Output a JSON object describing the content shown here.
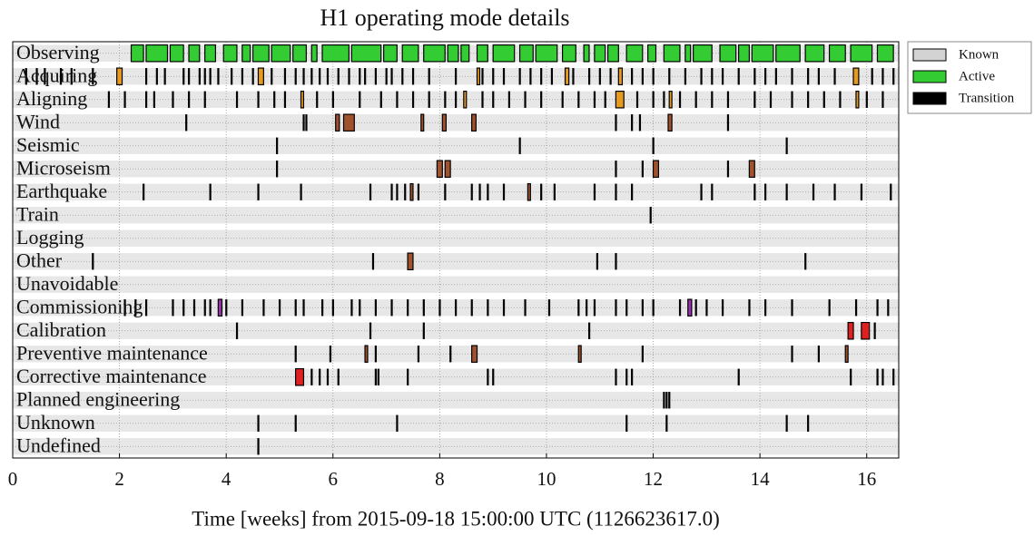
{
  "chart_data": {
    "type": "timeline",
    "title": "H1 operating mode details",
    "x_label": "Time [weeks] from 2015-09-18 15:00:00 UTC (1126623617.0)",
    "xlim": [
      0,
      16.6
    ],
    "xticks": [
      0,
      2,
      4,
      6,
      8,
      10,
      12,
      14,
      16
    ],
    "grid": true,
    "legend_position": "outside right",
    "legend": [
      {
        "name": "Known",
        "color": "#d3d3d3"
      },
      {
        "name": "Active",
        "color": "#33cc33"
      },
      {
        "name": "Transition",
        "color": "#000000"
      }
    ],
    "rows": [
      {
        "name": "Observing",
        "color": "#33cc33",
        "known": [
          [
            0,
            16.6
          ]
        ],
        "active": [
          [
            2.22,
            2.45
          ],
          [
            2.5,
            2.9
          ],
          [
            2.95,
            3.2
          ],
          [
            3.3,
            3.5
          ],
          [
            3.6,
            3.8
          ],
          [
            3.95,
            4.2
          ],
          [
            4.3,
            4.45
          ],
          [
            4.5,
            4.8
          ],
          [
            4.85,
            5.2
          ],
          [
            5.25,
            5.5
          ],
          [
            5.6,
            5.7
          ],
          [
            5.8,
            6.3
          ],
          [
            6.35,
            6.9
          ],
          [
            6.95,
            7.2
          ],
          [
            7.3,
            7.6
          ],
          [
            7.7,
            8.1
          ],
          [
            8.15,
            8.35
          ],
          [
            8.4,
            8.55
          ],
          [
            8.7,
            8.9
          ],
          [
            9.0,
            9.4
          ],
          [
            9.5,
            9.75
          ],
          [
            9.8,
            10.2
          ],
          [
            10.3,
            10.55
          ],
          [
            10.7,
            10.8
          ],
          [
            10.9,
            11.1
          ],
          [
            11.15,
            11.35
          ],
          [
            11.5,
            11.8
          ],
          [
            11.9,
            12.05
          ],
          [
            12.2,
            12.5
          ],
          [
            12.6,
            12.7
          ],
          [
            12.75,
            13.1
          ],
          [
            13.25,
            13.55
          ],
          [
            13.6,
            13.8
          ],
          [
            13.85,
            14.25
          ],
          [
            14.3,
            14.75
          ],
          [
            14.85,
            15.2
          ],
          [
            15.3,
            15.6
          ],
          [
            15.7,
            16.1
          ],
          [
            16.2,
            16.5
          ]
        ],
        "transition": []
      },
      {
        "name": "Acquiring",
        "color": "#e69a1e",
        "known": [
          [
            0,
            16.6
          ]
        ],
        "active": [
          [
            1.95,
            2.05
          ],
          [
            4.6,
            4.7
          ],
          [
            8.7,
            8.75
          ],
          [
            10.35,
            10.42
          ],
          [
            11.35,
            11.42
          ],
          [
            15.75,
            15.85
          ]
        ],
        "transition": [
          0.25,
          0.45,
          0.6,
          0.9,
          1.1,
          1.5,
          2.5,
          2.7,
          2.85,
          3.2,
          3.3,
          3.5,
          3.6,
          3.7,
          3.85,
          4.1,
          4.3,
          4.5,
          4.85,
          5.1,
          5.3,
          5.45,
          5.6,
          5.75,
          5.9,
          6.1,
          6.3,
          6.5,
          6.6,
          6.8,
          7.0,
          7.1,
          7.3,
          7.5,
          7.8,
          8.3,
          8.8,
          9.0,
          9.2,
          9.5,
          9.7,
          9.9,
          10.1,
          10.5,
          10.8,
          11.0,
          11.2,
          11.6,
          11.8,
          12.0,
          12.3,
          12.6,
          12.9,
          13.1,
          13.3,
          13.6,
          13.9,
          14.1,
          14.3,
          14.6,
          14.9,
          15.1,
          15.4,
          16.1,
          16.3,
          16.5
        ]
      },
      {
        "name": "Aligning",
        "color": "#e69a1e",
        "known": [
          [
            0,
            16.6
          ]
        ],
        "active": [
          [
            5.4,
            5.45
          ],
          [
            8.45,
            8.5
          ],
          [
            11.3,
            11.45
          ],
          [
            12.3,
            12.35
          ],
          [
            15.8,
            15.85
          ]
        ],
        "transition": [
          1.8,
          2.1,
          2.5,
          2.65,
          3.0,
          3.3,
          3.6,
          4.2,
          4.6,
          4.9,
          5.1,
          5.7,
          6.0,
          6.5,
          6.9,
          7.2,
          7.5,
          7.8,
          8.1,
          8.3,
          8.8,
          9.0,
          9.3,
          9.6,
          9.9,
          10.3,
          10.6,
          10.9,
          11.1,
          11.7,
          12.0,
          12.2,
          12.5,
          12.8,
          13.1,
          13.4,
          13.9,
          14.2,
          14.6,
          14.9,
          15.2,
          15.5,
          16.0,
          16.3
        ]
      },
      {
        "name": "Wind",
        "color": "#a0522d",
        "known": [
          [
            0,
            16.6
          ]
        ],
        "active": [
          [
            6.05,
            6.12
          ],
          [
            6.2,
            6.4
          ],
          [
            7.65,
            7.7
          ],
          [
            8.05,
            8.12
          ],
          [
            8.6,
            8.68
          ],
          [
            12.28,
            12.35
          ]
        ],
        "transition": [
          3.25,
          5.45,
          5.5,
          11.3,
          11.6,
          11.75,
          13.4
        ]
      },
      {
        "name": "Seismic",
        "color": "#a0522d",
        "known": [
          [
            0,
            16.6
          ]
        ],
        "active": [],
        "transition": [
          4.95,
          9.5,
          12.0,
          14.5
        ]
      },
      {
        "name": "Microseism",
        "color": "#a0522d",
        "known": [
          [
            0,
            16.6
          ]
        ],
        "active": [
          [
            7.95,
            8.05
          ],
          [
            8.1,
            8.2
          ],
          [
            12.0,
            12.1
          ],
          [
            13.8,
            13.9
          ]
        ],
        "transition": [
          4.95,
          11.3,
          11.8,
          13.4
        ]
      },
      {
        "name": "Earthquake",
        "color": "#a0522d",
        "known": [
          [
            0,
            16.6
          ]
        ],
        "active": [
          [
            7.45,
            7.5
          ],
          [
            9.65,
            9.7
          ]
        ],
        "transition": [
          2.45,
          3.7,
          4.6,
          5.4,
          6.7,
          7.1,
          7.2,
          7.35,
          7.6,
          8.1,
          8.6,
          8.75,
          8.9,
          9.2,
          9.9,
          10.15,
          10.9,
          11.3,
          11.6,
          12.9,
          13.1,
          13.9,
          14.1,
          14.5,
          15.0,
          15.4,
          15.9,
          16.45
        ]
      },
      {
        "name": "Train",
        "color": "#a0522d",
        "known": [
          [
            0,
            16.6
          ]
        ],
        "active": [],
        "transition": [
          11.95
        ]
      },
      {
        "name": "Logging",
        "color": "#a0522d",
        "known": [
          [
            0,
            16.6
          ]
        ],
        "active": [],
        "transition": []
      },
      {
        "name": "Other",
        "color": "#a0522d",
        "known": [
          [
            0,
            16.6
          ]
        ],
        "active": [
          [
            7.4,
            7.5
          ]
        ],
        "transition": [
          1.5,
          6.75,
          10.95,
          11.3,
          14.85
        ]
      },
      {
        "name": "Unavoidable",
        "color": "#a0522d",
        "known": [
          [
            0,
            16.6
          ]
        ],
        "active": [],
        "transition": []
      },
      {
        "name": "Commissioning",
        "color": "#9b30b0",
        "known": [
          [
            0,
            16.6
          ]
        ],
        "active": [
          [
            3.85,
            3.92
          ],
          [
            12.65,
            12.72
          ]
        ],
        "transition": [
          2.1,
          2.3,
          2.5,
          3.0,
          3.2,
          3.4,
          3.6,
          3.7,
          4.0,
          4.3,
          4.7,
          5.0,
          5.3,
          5.45,
          5.8,
          6.0,
          6.35,
          6.5,
          6.8,
          7.1,
          7.4,
          7.7,
          8.0,
          8.3,
          8.6,
          8.9,
          9.2,
          9.6,
          10.05,
          10.6,
          10.75,
          10.9,
          11.3,
          11.5,
          11.8,
          12.0,
          12.5,
          12.8,
          13.0,
          13.3,
          13.8,
          14.1,
          14.6,
          15.3,
          15.8,
          16.2,
          16.4
        ]
      },
      {
        "name": "Calibration",
        "color": "#e02020",
        "known": [
          [
            0,
            16.6
          ]
        ],
        "active": [
          [
            15.65,
            15.75
          ],
          [
            15.9,
            16.05
          ]
        ],
        "transition": [
          4.2,
          6.7,
          7.7,
          10.8,
          16.15
        ]
      },
      {
        "name": "Preventive maintenance",
        "color": "#a0522d",
        "known": [
          [
            0,
            16.6
          ]
        ],
        "active": [
          [
            6.6,
            6.65
          ],
          [
            8.6,
            8.7
          ],
          [
            10.6,
            10.65
          ],
          [
            15.6,
            15.65
          ]
        ],
        "transition": [
          5.3,
          5.95,
          6.8,
          7.6,
          8.2,
          11.8,
          14.6,
          15.1
        ]
      },
      {
        "name": "Corrective maintenance",
        "color": "#e02020",
        "known": [
          [
            0,
            16.6
          ]
        ],
        "active": [
          [
            5.3,
            5.45
          ]
        ],
        "transition": [
          5.6,
          5.75,
          5.9,
          6.1,
          6.8,
          6.85,
          7.4,
          8.9,
          9.0,
          11.3,
          11.5,
          11.6,
          13.6,
          15.7,
          16.2,
          16.3,
          16.5
        ]
      },
      {
        "name": "Planned engineering",
        "color": "#a0522d",
        "known": [
          [
            0,
            16.6
          ]
        ],
        "active": [],
        "transition": [
          12.2,
          12.25,
          12.3
        ]
      },
      {
        "name": "Unknown",
        "color": "#a0522d",
        "known": [
          [
            0,
            16.6
          ]
        ],
        "active": [],
        "transition": [
          4.6,
          5.3,
          7.2,
          11.5,
          12.25,
          14.5,
          14.9
        ]
      },
      {
        "name": "Undefined",
        "color": "#a0522d",
        "known": [
          [
            0,
            16.6
          ]
        ],
        "active": [],
        "transition": [
          4.6
        ]
      }
    ]
  }
}
